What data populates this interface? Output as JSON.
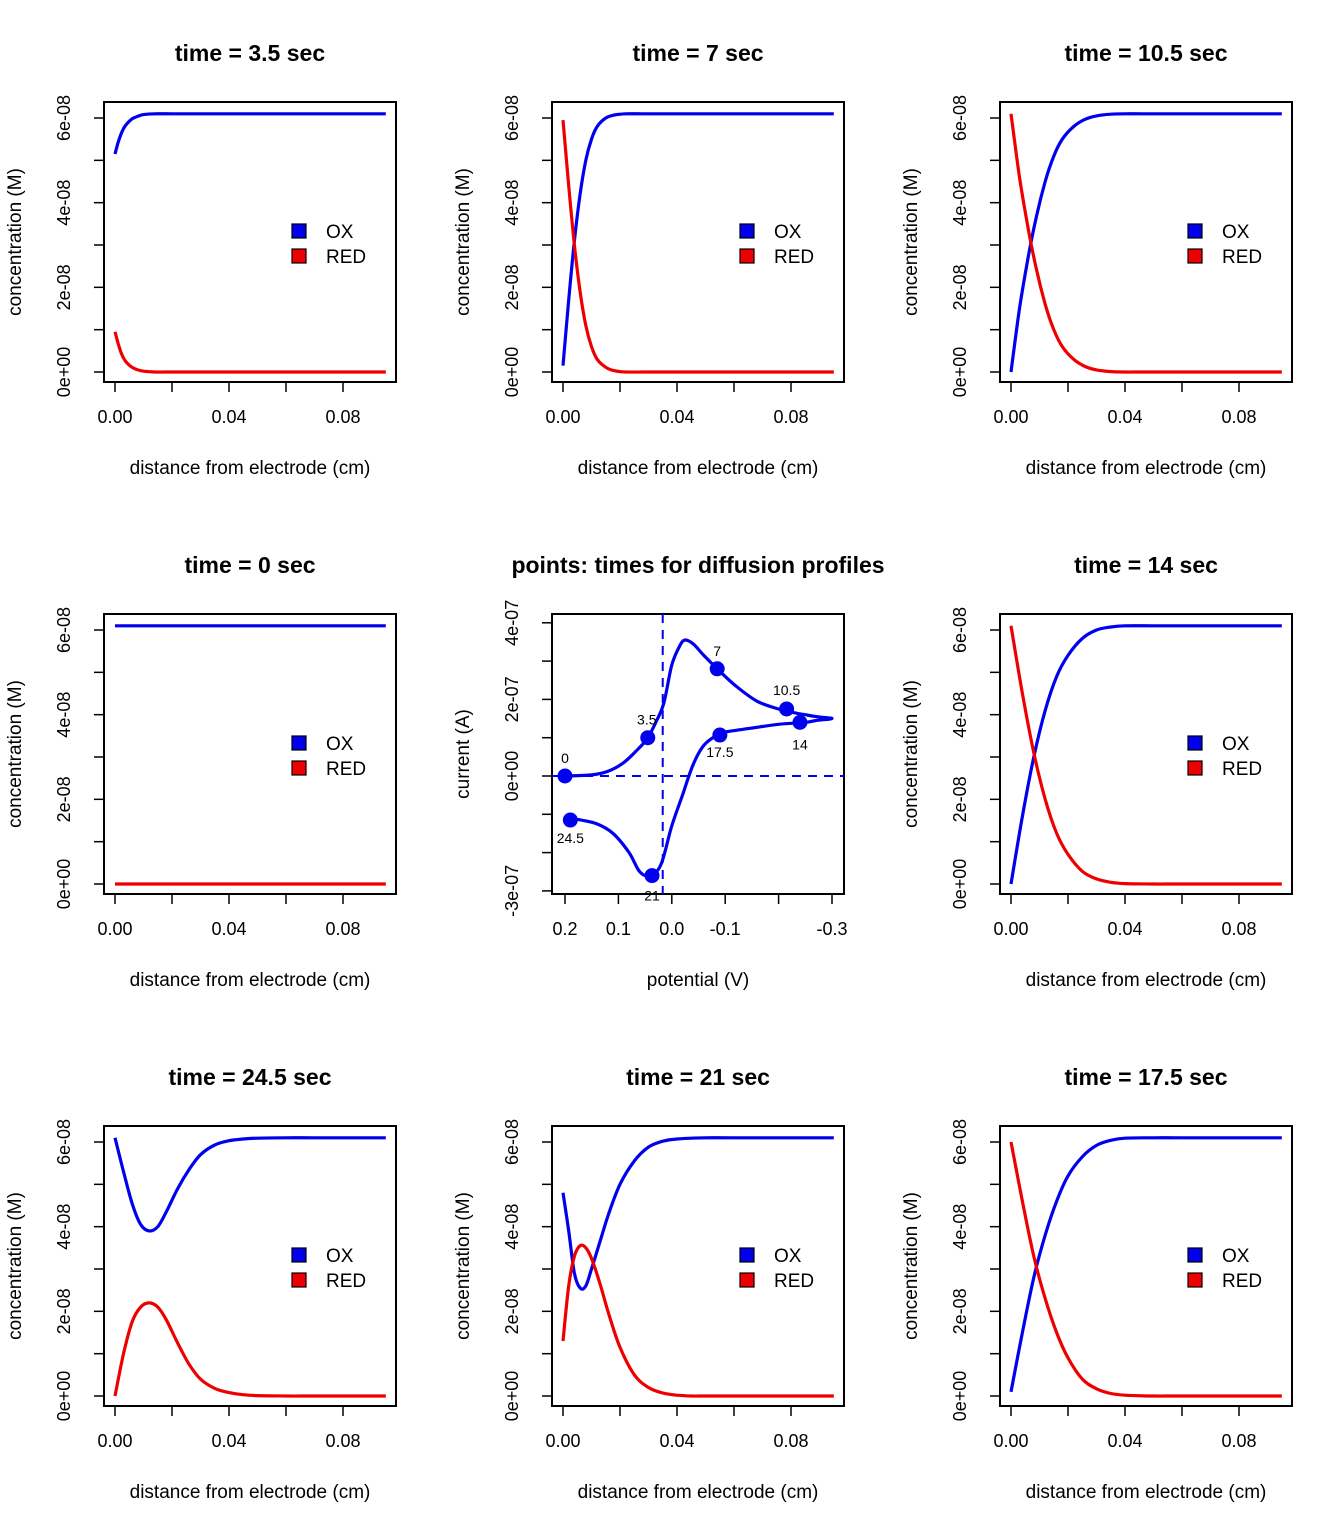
{
  "chart_data": [
    {
      "type": "line",
      "title": "time =  3.5  sec",
      "xlabel": "distance from electrode (cm)",
      "ylabel": "concentration (M)",
      "xlim": [
        0,
        0.095
      ],
      "ylim": [
        0,
        6.1e-08
      ],
      "xticks": [
        0,
        0.02,
        0.04,
        0.06,
        0.08
      ],
      "xticklabels": [
        "0.00",
        "",
        "0.04",
        "",
        "0.08"
      ],
      "yticks": [
        0,
        1e-08,
        2e-08,
        3e-08,
        4e-08,
        5e-08,
        6e-08
      ],
      "yticklabels": [
        "0e+00",
        "",
        "2e-08",
        "",
        "4e-08",
        "",
        "6e-08"
      ],
      "legend": [
        "OX",
        "RED"
      ],
      "series": [
        {
          "name": "OX",
          "color": "#0000ee",
          "x": [
            0,
            0.001,
            0.002,
            0.003,
            0.004,
            0.006,
            0.008,
            0.01,
            0.014,
            0.02,
            0.03,
            0.095
          ],
          "y": [
            5.15e-08,
            5.4e-08,
            5.6e-08,
            5.75e-08,
            5.85e-08,
            5.98e-08,
            6.04e-08,
            6.08e-08,
            6.1e-08,
            6.1e-08,
            6.1e-08,
            6.1e-08
          ]
        },
        {
          "name": "RED",
          "color": "#ee0000",
          "x": [
            0,
            0.001,
            0.002,
            0.003,
            0.004,
            0.006,
            0.008,
            0.01,
            0.014,
            0.02,
            0.03,
            0.095
          ],
          "y": [
            9.5e-09,
            7e-09,
            4.8e-09,
            3.3e-09,
            2.3e-09,
            1.1e-09,
            5e-10,
            2e-10,
            0,
            0,
            0,
            0
          ]
        }
      ]
    },
    {
      "type": "line",
      "title": "time =  7  sec",
      "xlabel": "distance from electrode (cm)",
      "ylabel": "concentration (M)",
      "xlim": [
        0,
        0.095
      ],
      "ylim": [
        0,
        6.1e-08
      ],
      "xticks": [
        0,
        0.02,
        0.04,
        0.06,
        0.08
      ],
      "xticklabels": [
        "0.00",
        "",
        "0.04",
        "",
        "0.08"
      ],
      "yticks": [
        0,
        1e-08,
        2e-08,
        3e-08,
        4e-08,
        5e-08,
        6e-08
      ],
      "yticklabels": [
        "0e+00",
        "",
        "2e-08",
        "",
        "4e-08",
        "",
        "6e-08"
      ],
      "legend": [
        "OX",
        "RED"
      ],
      "series": [
        {
          "name": "OX",
          "color": "#0000ee",
          "x": [
            0,
            0.002,
            0.004,
            0.006,
            0.008,
            0.01,
            0.012,
            0.015,
            0.018,
            0.022,
            0.028,
            0.035,
            0.045,
            0.095
          ],
          "y": [
            1.5e-09,
            1.7e-08,
            3.1e-08,
            4.2e-08,
            5e-08,
            5.5e-08,
            5.8e-08,
            6e-08,
            6.07e-08,
            6.1e-08,
            6.1e-08,
            6.1e-08,
            6.1e-08,
            6.1e-08
          ]
        },
        {
          "name": "RED",
          "color": "#ee0000",
          "x": [
            0,
            0.002,
            0.004,
            0.006,
            0.008,
            0.01,
            0.012,
            0.015,
            0.018,
            0.022,
            0.028,
            0.035,
            0.045,
            0.095
          ],
          "y": [
            5.95e-08,
            4.4e-08,
            3e-08,
            1.9e-08,
            1.1e-08,
            6e-09,
            3e-09,
            1.1e-09,
            3e-10,
            0,
            0,
            0,
            0,
            0
          ]
        }
      ]
    },
    {
      "type": "line",
      "title": "time =  10.5  sec",
      "xlabel": "distance from electrode (cm)",
      "ylabel": "concentration (M)",
      "xlim": [
        0,
        0.095
      ],
      "ylim": [
        0,
        6.1e-08
      ],
      "xticks": [
        0,
        0.02,
        0.04,
        0.06,
        0.08
      ],
      "xticklabels": [
        "0.00",
        "",
        "0.04",
        "",
        "0.08"
      ],
      "yticks": [
        0,
        1e-08,
        2e-08,
        3e-08,
        4e-08,
        5e-08,
        6e-08
      ],
      "yticklabels": [
        "0e+00",
        "",
        "2e-08",
        "",
        "4e-08",
        "",
        "6e-08"
      ],
      "legend": [
        "OX",
        "RED"
      ],
      "series": [
        {
          "name": "OX",
          "color": "#0000ee",
          "x": [
            0,
            0.003,
            0.006,
            0.009,
            0.012,
            0.015,
            0.018,
            0.022,
            0.026,
            0.03,
            0.035,
            0.04,
            0.05,
            0.095
          ],
          "y": [
            0,
            1.5e-08,
            2.7e-08,
            3.7e-08,
            4.5e-08,
            5.1e-08,
            5.5e-08,
            5.8e-08,
            5.97e-08,
            6.05e-08,
            6.09e-08,
            6.1e-08,
            6.1e-08,
            6.1e-08
          ]
        },
        {
          "name": "RED",
          "color": "#ee0000",
          "x": [
            0,
            0.003,
            0.006,
            0.009,
            0.012,
            0.015,
            0.018,
            0.022,
            0.026,
            0.03,
            0.035,
            0.04,
            0.05,
            0.095
          ],
          "y": [
            6.1e-08,
            4.6e-08,
            3.4e-08,
            2.4e-08,
            1.6e-08,
            1e-08,
            6e-09,
            3e-09,
            1.3e-09,
            5e-10,
            1e-10,
            0,
            0,
            0
          ]
        }
      ]
    },
    {
      "type": "line",
      "title": "time =  0  sec",
      "xlabel": "distance from electrode (cm)",
      "ylabel": "concentration (M)",
      "xlim": [
        0,
        0.095
      ],
      "ylim": [
        0,
        6.1e-08
      ],
      "xticks": [
        0,
        0.02,
        0.04,
        0.06,
        0.08
      ],
      "xticklabels": [
        "0.00",
        "",
        "0.04",
        "",
        "0.08"
      ],
      "yticks": [
        0,
        1e-08,
        2e-08,
        3e-08,
        4e-08,
        5e-08,
        6e-08
      ],
      "yticklabels": [
        "0e+00",
        "",
        "2e-08",
        "",
        "4e-08",
        "",
        "6e-08"
      ],
      "legend": [
        "OX",
        "RED"
      ],
      "series": [
        {
          "name": "OX",
          "color": "#0000ee",
          "x": [
            0,
            0.095
          ],
          "y": [
            6.1e-08,
            6.1e-08
          ]
        },
        {
          "name": "RED",
          "color": "#ee0000",
          "x": [
            0,
            0.095
          ],
          "y": [
            0,
            0
          ]
        }
      ]
    },
    {
      "type": "line",
      "title": "points: times for diffusion profiles",
      "xlabel": "potential (V)",
      "ylabel": "current (A)",
      "xlim": [
        0.2,
        -0.3
      ],
      "ylim": [
        -3e-07,
        4e-07
      ],
      "xticks": [
        0.2,
        0.1,
        0.0,
        -0.1,
        -0.2,
        -0.3
      ],
      "xticklabels": [
        "0.2",
        "0.1",
        "0.0",
        "-0.1",
        "",
        "-0.3"
      ],
      "yticks": [
        -3e-07,
        -2e-07,
        -1e-07,
        0,
        1e-07,
        2e-07,
        3e-07,
        4e-07
      ],
      "yticklabels": [
        "-3e-07",
        "",
        "",
        "0e+00",
        "",
        "2e-07",
        "",
        "4e-07"
      ],
      "reference_lines": {
        "x": 0.017,
        "y": 0
      },
      "series": [
        {
          "name": "",
          "color": "#0000ee",
          "x": [
            0.2,
            0.15,
            0.12,
            0.09,
            0.06,
            0.045,
            0.03,
            0.015,
            0.0,
            -0.015,
            -0.025,
            -0.04,
            -0.06,
            -0.085,
            -0.12,
            -0.16,
            -0.2,
            -0.23,
            -0.25,
            -0.27,
            -0.3,
            -0.27,
            -0.25,
            -0.2,
            -0.15,
            -0.1,
            -0.085,
            -0.06,
            -0.04,
            -0.02,
            0.0,
            0.02,
            0.04,
            0.06,
            0.08,
            0.11,
            0.14,
            0.17,
            0.19,
            0.2
          ],
          "y": [
            0,
            3e-09,
            1.2e-08,
            3.5e-08,
            7.5e-08,
            1e-07,
            1.4e-07,
            1.9e-07,
            2.9e-07,
            3.4e-07,
            3.55e-07,
            3.45e-07,
            3.15e-07,
            2.8e-07,
            2.35e-07,
            1.95e-07,
            1.75e-07,
            1.65e-07,
            1.6e-07,
            1.55e-07,
            1.5e-07,
            1.45e-07,
            1.4e-07,
            1.35e-07,
            1.25e-07,
            1.15e-07,
            1.07e-07,
            8e-08,
            3e-08,
            -5e-08,
            -1.3e-07,
            -2.3e-07,
            -2.6e-07,
            -2.5e-07,
            -2e-07,
            -1.5e-07,
            -1.25e-07,
            -1.15e-07,
            -1.1e-07,
            -1.05e-07
          ]
        }
      ],
      "points": [
        {
          "label": "0",
          "x": 0.2,
          "y": 0
        },
        {
          "label": "3.5",
          "x": 0.045,
          "y": 1e-07
        },
        {
          "label": "7",
          "x": -0.085,
          "y": 2.8e-07
        },
        {
          "label": "10.5",
          "x": -0.215,
          "y": 1.75e-07
        },
        {
          "label": "14",
          "x": -0.24,
          "y": 1.4e-07
        },
        {
          "label": "17.5",
          "x": -0.09,
          "y": 1.07e-07
        },
        {
          "label": "21",
          "x": 0.037,
          "y": -2.6e-07
        },
        {
          "label": "24.5",
          "x": 0.19,
          "y": -1.15e-07
        }
      ]
    },
    {
      "type": "line",
      "title": "time =  14  sec",
      "xlabel": "distance from electrode (cm)",
      "ylabel": "concentration (M)",
      "xlim": [
        0,
        0.095
      ],
      "ylim": [
        0,
        6.1e-08
      ],
      "xticks": [
        0,
        0.02,
        0.04,
        0.06,
        0.08
      ],
      "xticklabels": [
        "0.00",
        "",
        "0.04",
        "",
        "0.08"
      ],
      "yticks": [
        0,
        1e-08,
        2e-08,
        3e-08,
        4e-08,
        5e-08,
        6e-08
      ],
      "yticklabels": [
        "0e+00",
        "",
        "2e-08",
        "",
        "4e-08",
        "",
        "6e-08"
      ],
      "legend": [
        "OX",
        "RED"
      ],
      "series": [
        {
          "name": "OX",
          "color": "#0000ee",
          "x": [
            0,
            0.004,
            0.008,
            0.012,
            0.016,
            0.02,
            0.025,
            0.03,
            0.035,
            0.04,
            0.05,
            0.06,
            0.095
          ],
          "y": [
            0,
            1.6e-08,
            3e-08,
            4.1e-08,
            4.9e-08,
            5.4e-08,
            5.8e-08,
            6e-08,
            6.07e-08,
            6.1e-08,
            6.1e-08,
            6.1e-08,
            6.1e-08
          ]
        },
        {
          "name": "RED",
          "color": "#ee0000",
          "x": [
            0,
            0.004,
            0.008,
            0.012,
            0.016,
            0.02,
            0.025,
            0.03,
            0.035,
            0.04,
            0.05,
            0.06,
            0.095
          ],
          "y": [
            6.1e-08,
            4.5e-08,
            3.1e-08,
            2e-08,
            1.2e-08,
            7e-09,
            3e-09,
            1.2e-09,
            4e-10,
            1e-10,
            0,
            0,
            0
          ]
        }
      ]
    },
    {
      "type": "line",
      "title": "time =  24.5  sec",
      "xlabel": "distance from electrode (cm)",
      "ylabel": "concentration (M)",
      "xlim": [
        0,
        0.095
      ],
      "ylim": [
        0,
        6.1e-08
      ],
      "xticks": [
        0,
        0.02,
        0.04,
        0.06,
        0.08
      ],
      "xticklabels": [
        "0.00",
        "",
        "0.04",
        "",
        "0.08"
      ],
      "yticks": [
        0,
        1e-08,
        2e-08,
        3e-08,
        4e-08,
        5e-08,
        6e-08
      ],
      "yticklabels": [
        "0e+00",
        "",
        "2e-08",
        "",
        "4e-08",
        "",
        "6e-08"
      ],
      "legend": [
        "OX",
        "RED"
      ],
      "series": [
        {
          "name": "OX",
          "color": "#0000ee",
          "x": [
            0,
            0.003,
            0.006,
            0.009,
            0.012,
            0.015,
            0.018,
            0.022,
            0.026,
            0.03,
            0.035,
            0.04,
            0.045,
            0.05,
            0.06,
            0.07,
            0.095
          ],
          "y": [
            6.1e-08,
            5.3e-08,
            4.55e-08,
            4.05e-08,
            3.9e-08,
            4e-08,
            4.35e-08,
            4.9e-08,
            5.35e-08,
            5.7e-08,
            5.93e-08,
            6.03e-08,
            6.07e-08,
            6.09e-08,
            6.1e-08,
            6.1e-08,
            6.1e-08
          ]
        },
        {
          "name": "RED",
          "color": "#ee0000",
          "x": [
            0,
            0.003,
            0.006,
            0.009,
            0.012,
            0.015,
            0.018,
            0.022,
            0.026,
            0.03,
            0.035,
            0.04,
            0.045,
            0.05,
            0.06,
            0.07,
            0.095
          ],
          "y": [
            0,
            1e-08,
            1.75e-08,
            2.1e-08,
            2.2e-08,
            2.1e-08,
            1.8e-08,
            1.25e-08,
            7.5e-09,
            4e-09,
            1.8e-09,
            8e-10,
            3e-10,
            1e-10,
            0,
            0,
            0
          ]
        }
      ]
    },
    {
      "type": "line",
      "title": "time =  21  sec",
      "xlabel": "distance from electrode (cm)",
      "ylabel": "concentration (M)",
      "xlim": [
        0,
        0.095
      ],
      "ylim": [
        0,
        6.1e-08
      ],
      "xticks": [
        0,
        0.02,
        0.04,
        0.06,
        0.08
      ],
      "xticklabels": [
        "0.00",
        "",
        "0.04",
        "",
        "0.08"
      ],
      "yticks": [
        0,
        1e-08,
        2e-08,
        3e-08,
        4e-08,
        5e-08,
        6e-08
      ],
      "yticklabels": [
        "0e+00",
        "",
        "2e-08",
        "",
        "4e-08",
        "",
        "6e-08"
      ],
      "legend": [
        "OX",
        "RED"
      ],
      "series": [
        {
          "name": "OX",
          "color": "#0000ee",
          "x": [
            0,
            0.002,
            0.004,
            0.006,
            0.008,
            0.01,
            0.013,
            0.016,
            0.02,
            0.025,
            0.03,
            0.035,
            0.04,
            0.045,
            0.05,
            0.06,
            0.095
          ],
          "y": [
            4.8e-08,
            3.9e-08,
            2.9e-08,
            2.55e-08,
            2.6e-08,
            3e-08,
            3.65e-08,
            4.3e-08,
            5e-08,
            5.55e-08,
            5.88e-08,
            6.02e-08,
            6.07e-08,
            6.09e-08,
            6.1e-08,
            6.1e-08,
            6.1e-08
          ]
        },
        {
          "name": "RED",
          "color": "#ee0000",
          "x": [
            0,
            0.002,
            0.004,
            0.006,
            0.008,
            0.01,
            0.013,
            0.016,
            0.02,
            0.025,
            0.03,
            0.035,
            0.04,
            0.045,
            0.05,
            0.06,
            0.095
          ],
          "y": [
            1.3e-08,
            2.6e-08,
            3.3e-08,
            3.55e-08,
            3.5e-08,
            3.25e-08,
            2.65e-08,
            1.95e-08,
            1.15e-08,
            5e-09,
            2e-09,
            7e-10,
            2e-10,
            0,
            0,
            0,
            0
          ]
        }
      ]
    },
    {
      "type": "line",
      "title": "time =  17.5  sec",
      "xlabel": "distance from electrode (cm)",
      "ylabel": "concentration (M)",
      "xlim": [
        0,
        0.095
      ],
      "ylim": [
        0,
        6.1e-08
      ],
      "xticks": [
        0,
        0.02,
        0.04,
        0.06,
        0.08
      ],
      "xticklabels": [
        "0.00",
        "",
        "0.04",
        "",
        "0.08"
      ],
      "yticks": [
        0,
        1e-08,
        2e-08,
        3e-08,
        4e-08,
        5e-08,
        6e-08
      ],
      "yticklabels": [
        "0e+00",
        "",
        "2e-08",
        "",
        "4e-08",
        "",
        "6e-08"
      ],
      "legend": [
        "OX",
        "RED"
      ],
      "series": [
        {
          "name": "OX",
          "color": "#0000ee",
          "x": [
            0,
            0.004,
            0.008,
            0.012,
            0.016,
            0.02,
            0.025,
            0.03,
            0.035,
            0.04,
            0.05,
            0.06,
            0.095
          ],
          "y": [
            1e-09,
            1.5e-08,
            2.8e-08,
            3.8e-08,
            4.6e-08,
            5.2e-08,
            5.65e-08,
            5.92e-08,
            6.04e-08,
            6.09e-08,
            6.1e-08,
            6.1e-08,
            6.1e-08
          ]
        },
        {
          "name": "RED",
          "color": "#ee0000",
          "x": [
            0,
            0.004,
            0.008,
            0.012,
            0.016,
            0.02,
            0.025,
            0.03,
            0.035,
            0.04,
            0.05,
            0.06,
            0.095
          ],
          "y": [
            6e-08,
            4.6e-08,
            3.3e-08,
            2.3e-08,
            1.5e-08,
            9e-09,
            4e-09,
            1.7e-09,
            6e-10,
            2e-10,
            0,
            0,
            0
          ]
        }
      ]
    }
  ]
}
